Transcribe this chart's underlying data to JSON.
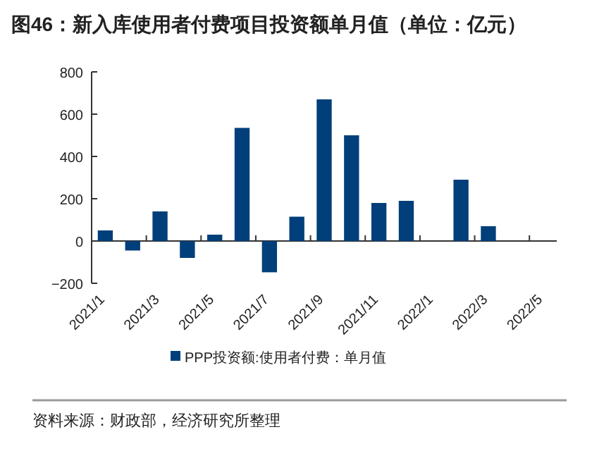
{
  "chart_data": {
    "type": "bar",
    "title": "图46：新入库使用者付费项目投资额单月值（单位：亿元）",
    "categories": [
      "2021/1",
      null,
      "2021/3",
      null,
      "2021/5",
      null,
      "2021/7",
      null,
      "2021/9",
      null,
      "2021/11",
      null,
      "2022/1",
      null,
      "2022/3",
      null,
      "2022/5"
    ],
    "series": [
      {
        "name": "PPP投资额:使用者付费：单月值",
        "color": "#003f7a",
        "values": [
          50,
          -45,
          140,
          -80,
          30,
          535,
          -148,
          115,
          670,
          500,
          180,
          190,
          null,
          290,
          70,
          null,
          null
        ]
      }
    ],
    "ylim": [
      -200,
      800
    ],
    "yticks": [
      -200,
      0,
      200,
      400,
      600,
      800
    ],
    "legend": "bottom",
    "annotations": [
      "资料来源：财政部，经济研究所整理"
    ]
  }
}
